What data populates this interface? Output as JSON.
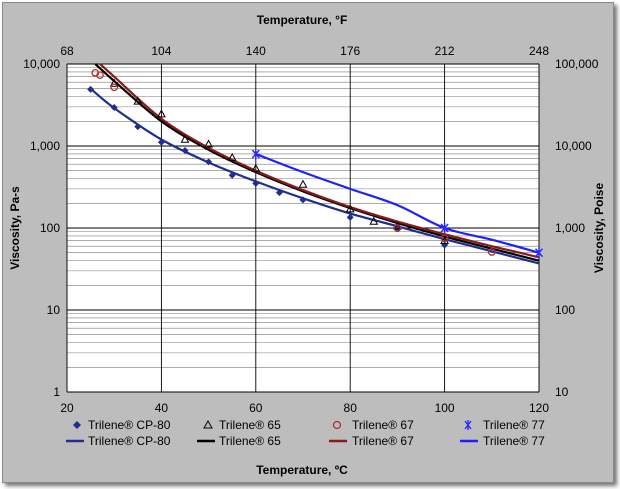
{
  "chart_data": {
    "type": "scatter",
    "axes": {
      "x_bottom": {
        "label": "Temperature, ºC",
        "range": [
          20,
          120
        ],
        "ticks": [
          "20",
          "40",
          "60",
          "80",
          "100",
          "120"
        ]
      },
      "x_top": {
        "label": "Temperature, °F",
        "range": [
          68,
          248
        ],
        "ticks": [
          "68",
          "104",
          "140",
          "176",
          "212",
          "248"
        ]
      },
      "y_left": {
        "label": "Viscosity,  Pa-s",
        "scale": "log",
        "range": [
          1,
          10000
        ],
        "ticks": [
          "1",
          "10",
          "100",
          "1,000",
          "10,000"
        ]
      },
      "y_right": {
        "label": "Viscosity,  Poise",
        "scale": "log",
        "range": [
          10,
          100000
        ],
        "ticks": [
          "10",
          "100",
          "1,000",
          "10,000",
          "100,000"
        ]
      }
    },
    "grid": true,
    "series": [
      {
        "name": "Trilene® CP-80",
        "marker": "diamond",
        "color": "#1f2f8f",
        "points": [
          [
            25,
            4900
          ],
          [
            30,
            2950
          ],
          [
            35,
            1720
          ],
          [
            40,
            1110
          ],
          [
            45,
            880
          ],
          [
            50,
            640
          ],
          [
            55,
            440
          ],
          [
            60,
            350
          ],
          [
            65,
            270
          ],
          [
            70,
            220
          ],
          [
            80,
            135
          ],
          [
            90,
            100
          ],
          [
            100,
            62
          ]
        ]
      },
      {
        "name": "Trilene® 65",
        "marker": "triangle",
        "color": "#000000",
        "points": [
          [
            30,
            5800
          ],
          [
            35,
            3500
          ],
          [
            40,
            2450
          ],
          [
            45,
            1200
          ],
          [
            50,
            1050
          ],
          [
            55,
            720
          ],
          [
            60,
            530
          ],
          [
            70,
            340
          ],
          [
            80,
            170
          ],
          [
            85,
            120
          ],
          [
            90,
            105
          ],
          [
            100,
            70
          ]
        ]
      },
      {
        "name": "Trilene® 67",
        "marker": "circle",
        "color": "#b03030",
        "points": [
          [
            26,
            7800
          ],
          [
            27,
            7300
          ],
          [
            30,
            5200
          ],
          [
            90,
            100
          ],
          [
            100,
            75
          ],
          [
            110,
            51
          ]
        ]
      },
      {
        "name": "Trilene® 77",
        "marker": "x",
        "color": "#2a2aff",
        "points": [
          [
            60,
            800
          ],
          [
            100,
            100
          ],
          [
            120,
            50
          ]
        ]
      }
    ],
    "fits": [
      {
        "name": "Trilene® CP-80",
        "color": "#1f2f8f",
        "points": [
          [
            25,
            5000
          ],
          [
            30,
            2900
          ],
          [
            40,
            1200
          ],
          [
            50,
            630
          ],
          [
            60,
            370
          ],
          [
            70,
            230
          ],
          [
            80,
            150
          ],
          [
            90,
            105
          ],
          [
            100,
            73
          ],
          [
            110,
            52
          ],
          [
            120,
            37
          ]
        ]
      },
      {
        "name": "Trilene® 65",
        "color": "#000000",
        "points": [
          [
            26,
            10000
          ],
          [
            30,
            6200
          ],
          [
            40,
            2000
          ],
          [
            50,
            900
          ],
          [
            60,
            480
          ],
          [
            70,
            280
          ],
          [
            80,
            175
          ],
          [
            90,
            115
          ],
          [
            100,
            79
          ],
          [
            110,
            56
          ],
          [
            120,
            40
          ]
        ]
      },
      {
        "name": "Trilene® 67",
        "color": "#8b1a1a",
        "points": [
          [
            27,
            10000
          ],
          [
            30,
            7000
          ],
          [
            40,
            2150
          ],
          [
            50,
            950
          ],
          [
            60,
            500
          ],
          [
            70,
            290
          ],
          [
            80,
            180
          ],
          [
            90,
            120
          ],
          [
            100,
            84
          ],
          [
            110,
            60
          ],
          [
            120,
            44
          ]
        ]
      },
      {
        "name": "Trilene® 77",
        "color": "#1f1fff",
        "points": [
          [
            60,
            800
          ],
          [
            70,
            480
          ],
          [
            80,
            300
          ],
          [
            90,
            190
          ],
          [
            100,
            100
          ],
          [
            110,
            72
          ],
          [
            120,
            50
          ]
        ]
      }
    ]
  }
}
